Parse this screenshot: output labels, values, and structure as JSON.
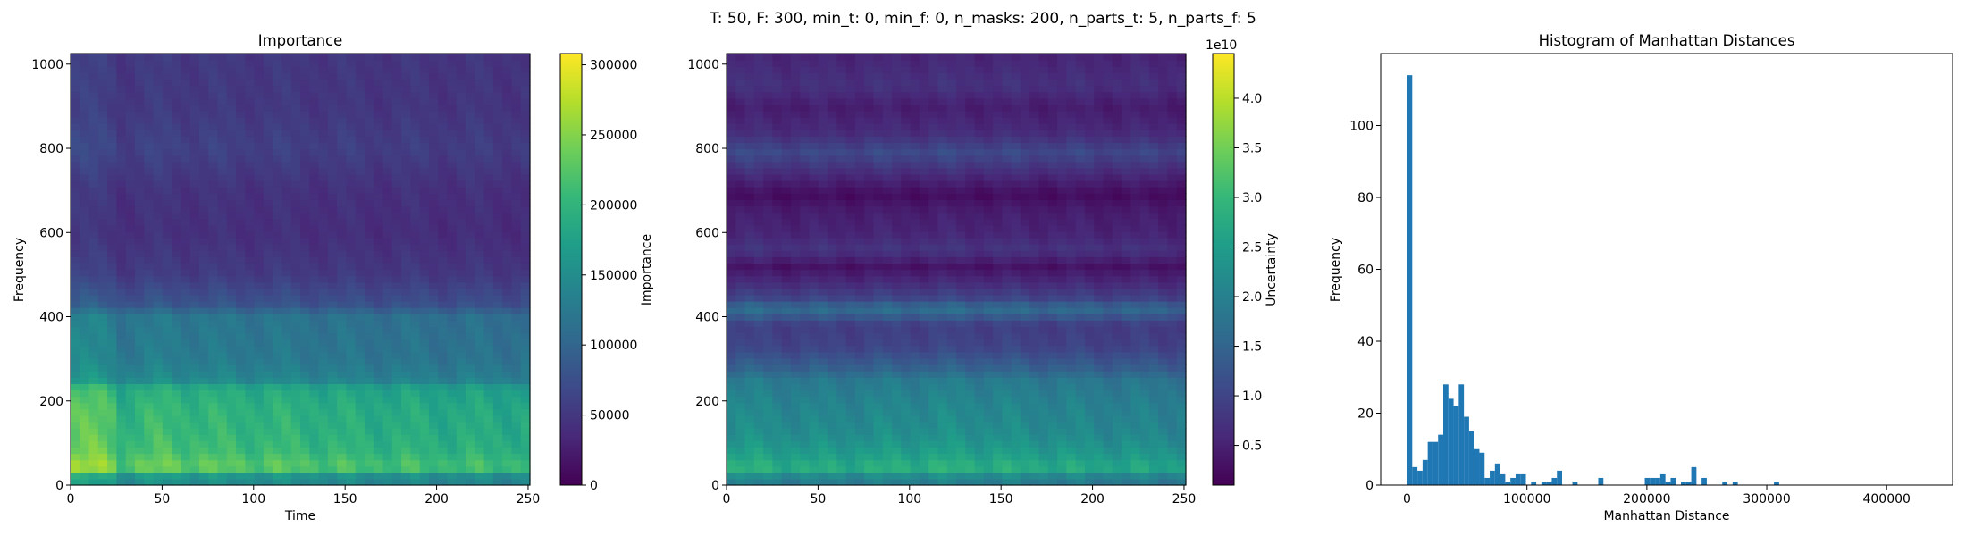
{
  "suptitle": "T: 50, F: 300, min_t: 0, min_f: 0, n_masks: 200, n_parts_t: 5, n_parts_f: 5",
  "colors": {
    "viridis": [
      "#440154",
      "#482878",
      "#3e4989",
      "#31688e",
      "#26828e",
      "#1f9e89",
      "#35b779",
      "#6ece58",
      "#b5de2b",
      "#fde725"
    ],
    "hist_bar": "#1f77b4"
  },
  "chart_data": [
    {
      "type": "heatmap",
      "title": "Importance",
      "xlabel": "Time",
      "ylabel": "Frequency",
      "xlim": [
        0,
        251
      ],
      "ylim": [
        0,
        1025
      ],
      "xticks": [
        "0",
        "50",
        "100",
        "150",
        "200",
        "250"
      ],
      "yticks": [
        "0",
        "200",
        "400",
        "600",
        "800",
        "1000"
      ],
      "colorbar": {
        "label": "Importance",
        "range": [
          0,
          308000
        ],
        "offset_text": "",
        "ticks": [
          "0",
          "50000",
          "100000",
          "150000",
          "200000",
          "250000",
          "300000"
        ],
        "tick_values": [
          0,
          50000,
          100000,
          150000,
          200000,
          250000,
          300000
        ]
      },
      "row_profile": [
        {
          "f": 0,
          "v": 0.48
        },
        {
          "f": 25,
          "v": 0.55
        },
        {
          "f": 40,
          "v": 0.78
        },
        {
          "f": 80,
          "v": 0.7
        },
        {
          "f": 130,
          "v": 0.67
        },
        {
          "f": 180,
          "v": 0.66
        },
        {
          "f": 230,
          "v": 0.62
        },
        {
          "f": 250,
          "v": 0.48
        },
        {
          "f": 300,
          "v": 0.42
        },
        {
          "f": 350,
          "v": 0.41
        },
        {
          "f": 400,
          "v": 0.4
        },
        {
          "f": 430,
          "v": 0.27
        },
        {
          "f": 500,
          "v": 0.18
        },
        {
          "f": 600,
          "v": 0.14
        },
        {
          "f": 700,
          "v": 0.15
        },
        {
          "f": 800,
          "v": 0.2
        },
        {
          "f": 900,
          "v": 0.17
        },
        {
          "f": 1025,
          "v": 0.17
        }
      ],
      "column_profile": [
        {
          "t": 0,
          "v": 1.12
        },
        {
          "t": 22,
          "v": 1.1
        },
        {
          "t": 25,
          "v": 0.95
        },
        {
          "t": 50,
          "v": 1.02
        },
        {
          "t": 75,
          "v": 0.98
        },
        {
          "t": 100,
          "v": 0.97
        },
        {
          "t": 125,
          "v": 0.96
        },
        {
          "t": 150,
          "v": 0.93
        },
        {
          "t": 200,
          "v": 0.91
        },
        {
          "t": 251,
          "v": 0.9
        }
      ]
    },
    {
      "type": "heatmap",
      "title": "",
      "xlabel": "",
      "ylabel": "",
      "xlim": [
        0,
        251
      ],
      "ylim": [
        0,
        1025
      ],
      "xticks": [
        "0",
        "50",
        "100",
        "150",
        "200",
        "250"
      ],
      "yticks": [
        "0",
        "200",
        "400",
        "600",
        "800",
        "1000"
      ],
      "colorbar": {
        "label": "Uncertainty",
        "range": [
          0.1,
          4.45
        ],
        "offset_text": "1e10",
        "ticks": [
          "0.5",
          "1.0",
          "1.5",
          "2.0",
          "2.5",
          "3.0",
          "3.5",
          "4.0"
        ],
        "tick_values": [
          0.5,
          1.0,
          1.5,
          2.0,
          2.5,
          3.0,
          3.5,
          4.0
        ]
      },
      "row_profile": [
        {
          "f": 0,
          "v": 0.4
        },
        {
          "f": 20,
          "v": 0.45
        },
        {
          "f": 40,
          "v": 0.62
        },
        {
          "f": 70,
          "v": 0.55
        },
        {
          "f": 120,
          "v": 0.48
        },
        {
          "f": 200,
          "v": 0.44
        },
        {
          "f": 250,
          "v": 0.4
        },
        {
          "f": 280,
          "v": 0.3
        },
        {
          "f": 330,
          "v": 0.2
        },
        {
          "f": 380,
          "v": 0.18
        },
        {
          "f": 420,
          "v": 0.36
        },
        {
          "f": 440,
          "v": 0.22
        },
        {
          "f": 480,
          "v": 0.12
        },
        {
          "f": 520,
          "v": 0.05
        },
        {
          "f": 560,
          "v": 0.15
        },
        {
          "f": 600,
          "v": 0.1
        },
        {
          "f": 650,
          "v": 0.08
        },
        {
          "f": 690,
          "v": 0.03
        },
        {
          "f": 740,
          "v": 0.12
        },
        {
          "f": 790,
          "v": 0.22
        },
        {
          "f": 840,
          "v": 0.12
        },
        {
          "f": 900,
          "v": 0.08
        },
        {
          "f": 950,
          "v": 0.14
        },
        {
          "f": 1025,
          "v": 0.1
        }
      ],
      "column_profile": [
        {
          "t": 0,
          "v": 1.05
        },
        {
          "t": 50,
          "v": 1.0
        },
        {
          "t": 120,
          "v": 1.05
        },
        {
          "t": 200,
          "v": 0.98
        },
        {
          "t": 251,
          "v": 0.95
        }
      ]
    },
    {
      "type": "bar",
      "title": "Histogram of Manhattan Distances",
      "xlabel": "Manhattan Distance",
      "ylabel": "Frequency",
      "xlim": [
        -22000,
        455000
      ],
      "ylim": [
        0,
        120
      ],
      "xticks": [
        {
          "value": 0,
          "label": "0"
        },
        {
          "value": 100000,
          "label": "100000"
        },
        {
          "value": 200000,
          "label": "200000"
        },
        {
          "value": 300000,
          "label": "300000"
        },
        {
          "value": 400000,
          "label": "400000"
        }
      ],
      "yticks": [
        {
          "value": 0,
          "label": "0"
        },
        {
          "value": 20,
          "label": "20"
        },
        {
          "value": 40,
          "label": "40"
        },
        {
          "value": 60,
          "label": "60"
        },
        {
          "value": 80,
          "label": "80"
        },
        {
          "value": 100,
          "label": "100"
        }
      ],
      "bin_start": 0,
      "bin_width": 4310,
      "counts": [
        114,
        5,
        4,
        7,
        12,
        12,
        14,
        28,
        24,
        22,
        28,
        19,
        15,
        10,
        9,
        2,
        4,
        6,
        3,
        1,
        2,
        3,
        3,
        0,
        1,
        0,
        1,
        1,
        2,
        4,
        0,
        0,
        1,
        0,
        0,
        0,
        0,
        2,
        0,
        0,
        0,
        0,
        0,
        0,
        0,
        0,
        2,
        2,
        2,
        3,
        1,
        2,
        0,
        1,
        1,
        5,
        0,
        2,
        0,
        0,
        0,
        1,
        0,
        1,
        0,
        0,
        0,
        0,
        0,
        0,
        0,
        1,
        0,
        0,
        0,
        0,
        0,
        0,
        0,
        0,
        0,
        0,
        0,
        0,
        0,
        0,
        0,
        0,
        0,
        0,
        0,
        0,
        0,
        0,
        0,
        0,
        0,
        0,
        0,
        0
      ]
    }
  ]
}
